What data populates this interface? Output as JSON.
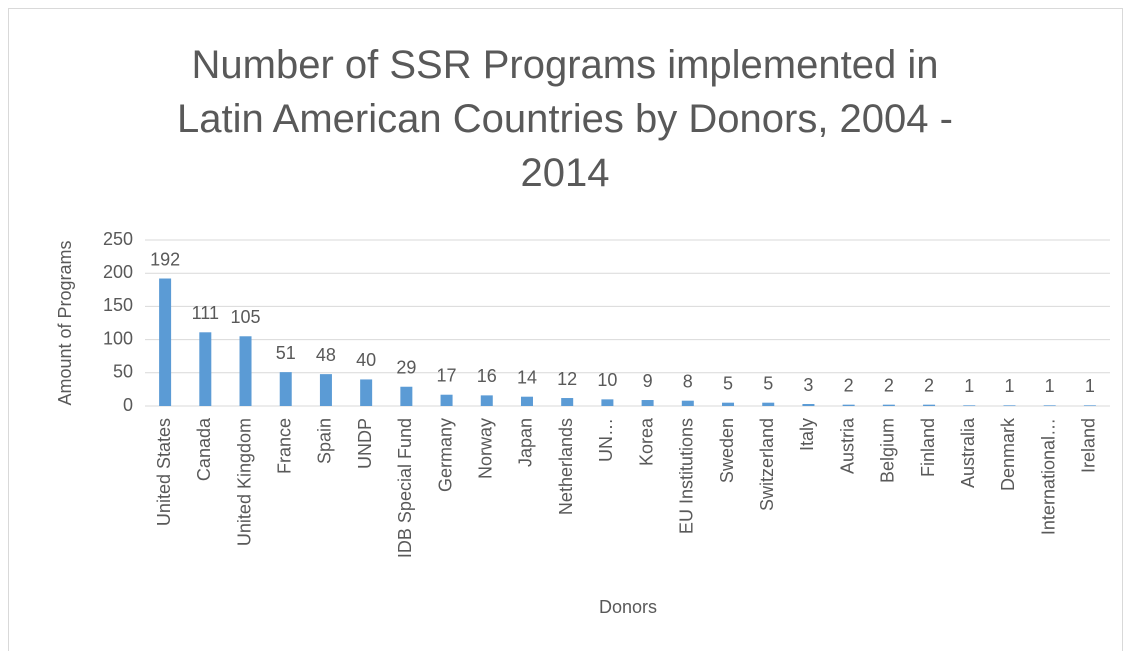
{
  "chart_data": {
    "type": "bar",
    "title": "Number of SSR Programs implemented in Latin American Countries by Donors, 2004 - 2014",
    "x_label": "Donors",
    "y_label": "Amount of Programs",
    "categories": [
      "United States",
      "Canada",
      "United Kingdom",
      "France",
      "Spain",
      "UNDP",
      "IDB Special Fund",
      "Germany",
      "Norway",
      "Japan",
      "Netherlands",
      "UN…",
      "Korea",
      "EU Institutions",
      "Sweden",
      "Switzerland",
      "Italy",
      "Austria",
      "Belgium",
      "Finland",
      "Australia",
      "Denmark",
      "International…",
      "Ireland"
    ],
    "values": [
      192,
      111,
      105,
      51,
      48,
      40,
      29,
      17,
      16,
      14,
      12,
      10,
      9,
      8,
      5,
      5,
      3,
      2,
      2,
      2,
      1,
      1,
      1,
      1
    ],
    "color": "#5b9bd5",
    "ylim": [
      0,
      250
    ],
    "yticks": [
      0,
      50,
      100,
      150,
      200,
      250
    ],
    "grid": true
  }
}
